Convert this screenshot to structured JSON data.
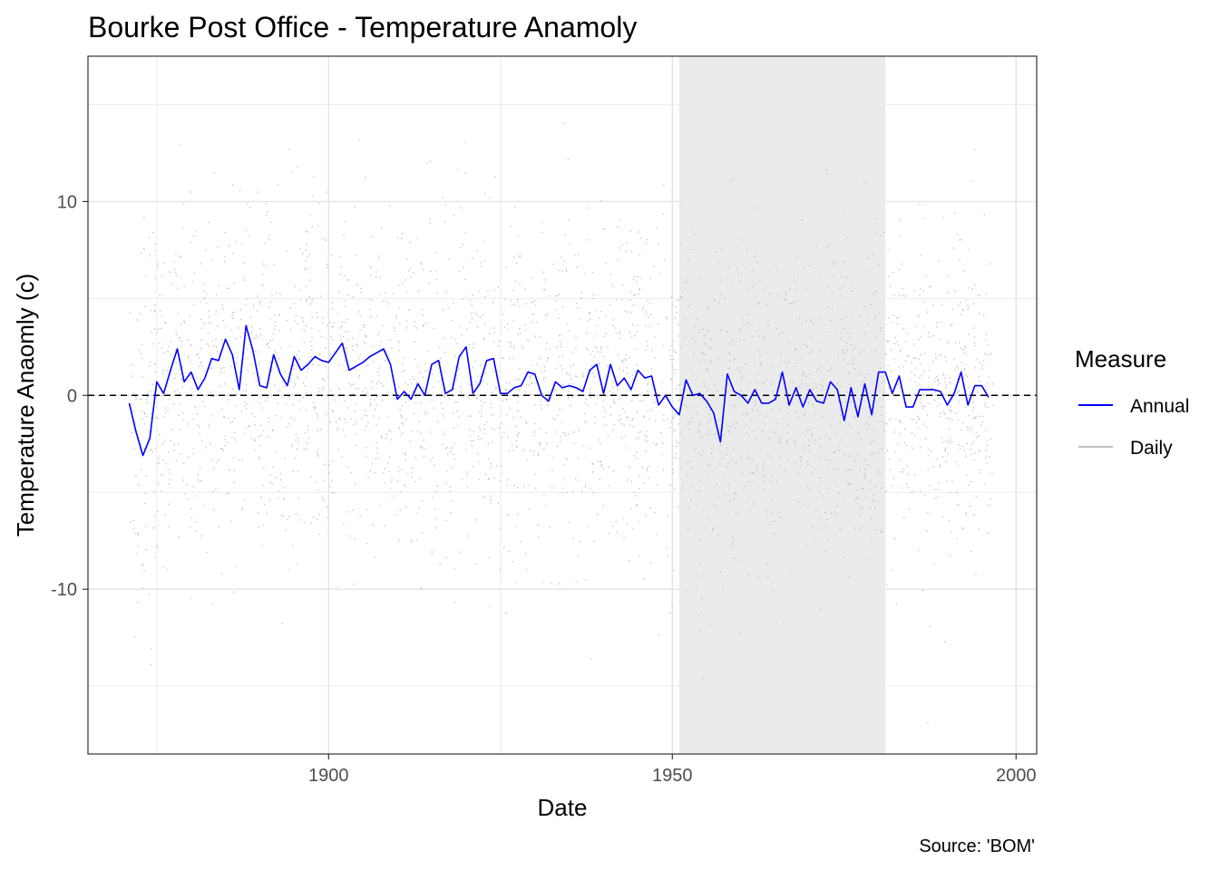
{
  "chart_data": {
    "type": "line",
    "title": "Bourke Post Office - Temperature Anamoly",
    "xlabel": "Date",
    "ylabel": "Temperature Anaomly (c)",
    "caption": "Source: 'BOM'",
    "xlim": [
      1865,
      2003
    ],
    "ylim": [
      -18.5,
      17.5
    ],
    "x_ticks": [
      1900,
      1950,
      2000
    ],
    "x_tick_labels": [
      "1900",
      "1950",
      "2000"
    ],
    "y_ticks": [
      -10,
      0,
      10
    ],
    "y_tick_labels": [
      "-10",
      "0",
      "10"
    ],
    "minor_x_ticks": [
      1875,
      1925,
      1975
    ],
    "minor_y_ticks": [
      -15,
      -5,
      5,
      15
    ],
    "grid": true,
    "reference_line": {
      "y": 0,
      "style": "dashed",
      "color": "#000000"
    },
    "highlight_band": {
      "x": [
        1951,
        1981
      ],
      "color": "#ebebeb"
    },
    "legend": {
      "title": "Measure",
      "position": "right",
      "entries": [
        {
          "label": "Annual",
          "color": "#0000ff"
        },
        {
          "label": "Daily",
          "color": "#bebebe"
        }
      ]
    },
    "series": [
      {
        "name": "Annual",
        "color": "#0000ff",
        "x": [
          1871,
          1872,
          1873,
          1874,
          1875,
          1876,
          1877,
          1878,
          1879,
          1880,
          1881,
          1882,
          1883,
          1884,
          1885,
          1886,
          1887,
          1888,
          1889,
          1890,
          1891,
          1892,
          1893,
          1894,
          1895,
          1896,
          1897,
          1898,
          1899,
          1900,
          1901,
          1902,
          1903,
          1904,
          1905,
          1906,
          1907,
          1908,
          1909,
          1910,
          1911,
          1912,
          1913,
          1914,
          1915,
          1916,
          1917,
          1918,
          1919,
          1920,
          1921,
          1922,
          1923,
          1924,
          1925,
          1926,
          1927,
          1928,
          1929,
          1930,
          1931,
          1932,
          1933,
          1934,
          1935,
          1936,
          1937,
          1938,
          1939,
          1940,
          1941,
          1942,
          1943,
          1944,
          1945,
          1946,
          1947,
          1948,
          1949,
          1950,
          1951,
          1952,
          1953,
          1954,
          1955,
          1956,
          1957,
          1958,
          1959,
          1960,
          1961,
          1962,
          1963,
          1964,
          1965,
          1966,
          1967,
          1968,
          1969,
          1970,
          1971,
          1972,
          1973,
          1974,
          1975,
          1976,
          1977,
          1978,
          1979,
          1980,
          1981,
          1982,
          1983,
          1984,
          1985,
          1986,
          1987,
          1988,
          1989,
          1990,
          1991,
          1992,
          1993,
          1994,
          1995,
          1996
        ],
        "y": [
          -0.4,
          -1.9,
          -3.1,
          -2.2,
          0.7,
          0.1,
          1.3,
          2.4,
          0.7,
          1.2,
          0.3,
          0.9,
          1.9,
          1.8,
          2.9,
          2.1,
          0.3,
          3.6,
          2.3,
          0.5,
          0.4,
          2.1,
          1.1,
          0.5,
          2.0,
          1.3,
          1.6,
          2.0,
          1.8,
          1.7,
          2.2,
          2.7,
          1.3,
          1.5,
          1.7,
          2.0,
          2.2,
          2.4,
          1.6,
          -0.2,
          0.2,
          -0.2,
          0.6,
          0.0,
          1.6,
          1.8,
          0.1,
          0.3,
          2.0,
          2.5,
          0.1,
          0.6,
          1.8,
          1.9,
          0.1,
          0.1,
          0.4,
          0.5,
          1.2,
          1.1,
          0.0,
          -0.3,
          0.7,
          0.4,
          0.5,
          0.4,
          0.2,
          1.3,
          1.6,
          0.1,
          1.6,
          0.5,
          0.9,
          0.3,
          1.3,
          0.9,
          1.0,
          -0.5,
          0.0,
          -0.6,
          -1.0,
          0.8,
          0.0,
          0.1,
          -0.3,
          -0.9,
          -2.4,
          1.1,
          0.2,
          0.0,
          -0.4,
          0.3,
          -0.4,
          -0.4,
          -0.2,
          1.2,
          -0.5,
          0.4,
          -0.6,
          0.3,
          -0.3,
          -0.4,
          0.7,
          0.3,
          -1.3,
          0.4,
          -1.1,
          0.6,
          -1.0,
          1.2,
          1.2,
          0.1,
          1.0,
          -0.6,
          -0.6,
          0.3,
          0.3,
          0.3,
          0.2,
          -0.5,
          0.1,
          1.2,
          -0.5,
          0.5,
          0.5,
          -0.1
        ]
      },
      {
        "name": "Daily",
        "color": "#bebebe",
        "note_style": "dense daily scatter, roughly spanning -16 to 16 around annual mean"
      }
    ]
  }
}
